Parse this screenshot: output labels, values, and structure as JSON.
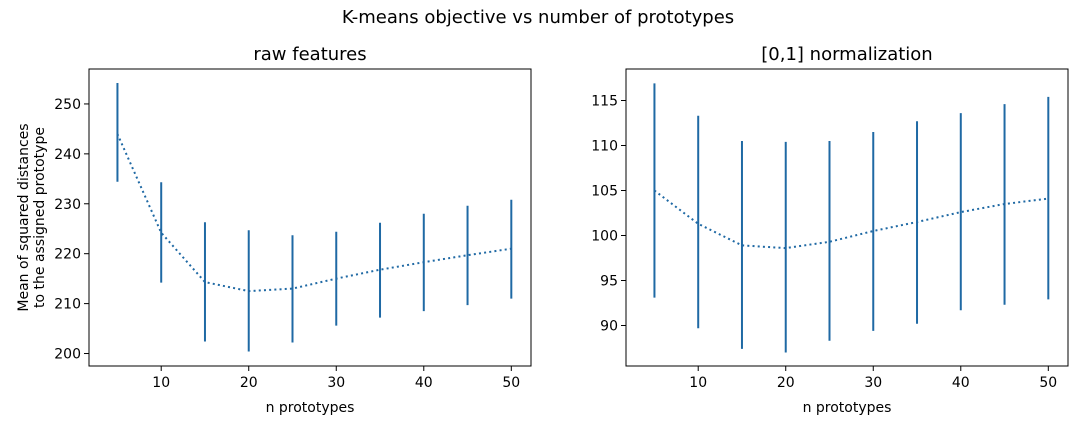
{
  "suptitle": "K-means objective vs number of prototypes",
  "colors": {
    "series": "#1f69a4"
  },
  "chart_data": [
    {
      "type": "line",
      "title": "raw features",
      "xlabel": "n prototypes",
      "ylabel": [
        "Mean of squared distances",
        "to the assigned prototype"
      ],
      "x": [
        5,
        10,
        15,
        20,
        25,
        30,
        35,
        40,
        45,
        50
      ],
      "series": [
        {
          "values": [
            244.0,
            224.2,
            214.3,
            212.5,
            213.0,
            215.0,
            216.8,
            218.3,
            219.7,
            221.0
          ],
          "lower": [
            234.4,
            214.2,
            202.4,
            200.4,
            202.2,
            205.6,
            207.2,
            208.5,
            209.7,
            211.0
          ],
          "upper": [
            254.2,
            234.3,
            226.3,
            224.7,
            223.7,
            224.4,
            226.2,
            228.0,
            229.6,
            230.8
          ]
        }
      ],
      "xlim": [
        1.75,
        52.25
      ],
      "ylim": [
        197.5,
        257.0
      ],
      "xticks": [
        10,
        20,
        30,
        40,
        50
      ],
      "yticks": [
        200,
        210,
        220,
        230,
        240,
        250
      ],
      "line_style": "dotted",
      "errorbars": true,
      "grid": false,
      "legend": "none"
    },
    {
      "type": "line",
      "title": "[0,1] normalization",
      "xlabel": "n prototypes",
      "ylabel": "",
      "x": [
        5,
        10,
        15,
        20,
        25,
        30,
        35,
        40,
        45,
        50
      ],
      "series": [
        {
          "values": [
            105.0,
            101.3,
            98.9,
            98.6,
            99.3,
            100.5,
            101.5,
            102.6,
            103.5,
            104.1
          ],
          "lower": [
            93.1,
            89.7,
            87.4,
            87.0,
            88.3,
            89.4,
            90.2,
            91.7,
            92.3,
            92.9
          ],
          "upper": [
            116.9,
            113.3,
            110.5,
            110.4,
            110.5,
            111.5,
            112.7,
            113.6,
            114.6,
            115.4
          ]
        }
      ],
      "xlim": [
        1.75,
        52.25
      ],
      "ylim": [
        85.5,
        118.5
      ],
      "xticks": [
        10,
        20,
        30,
        40,
        50
      ],
      "yticks": [
        90,
        95,
        100,
        105,
        110,
        115
      ],
      "line_style": "dotted",
      "errorbars": true,
      "grid": false,
      "legend": "none"
    }
  ]
}
